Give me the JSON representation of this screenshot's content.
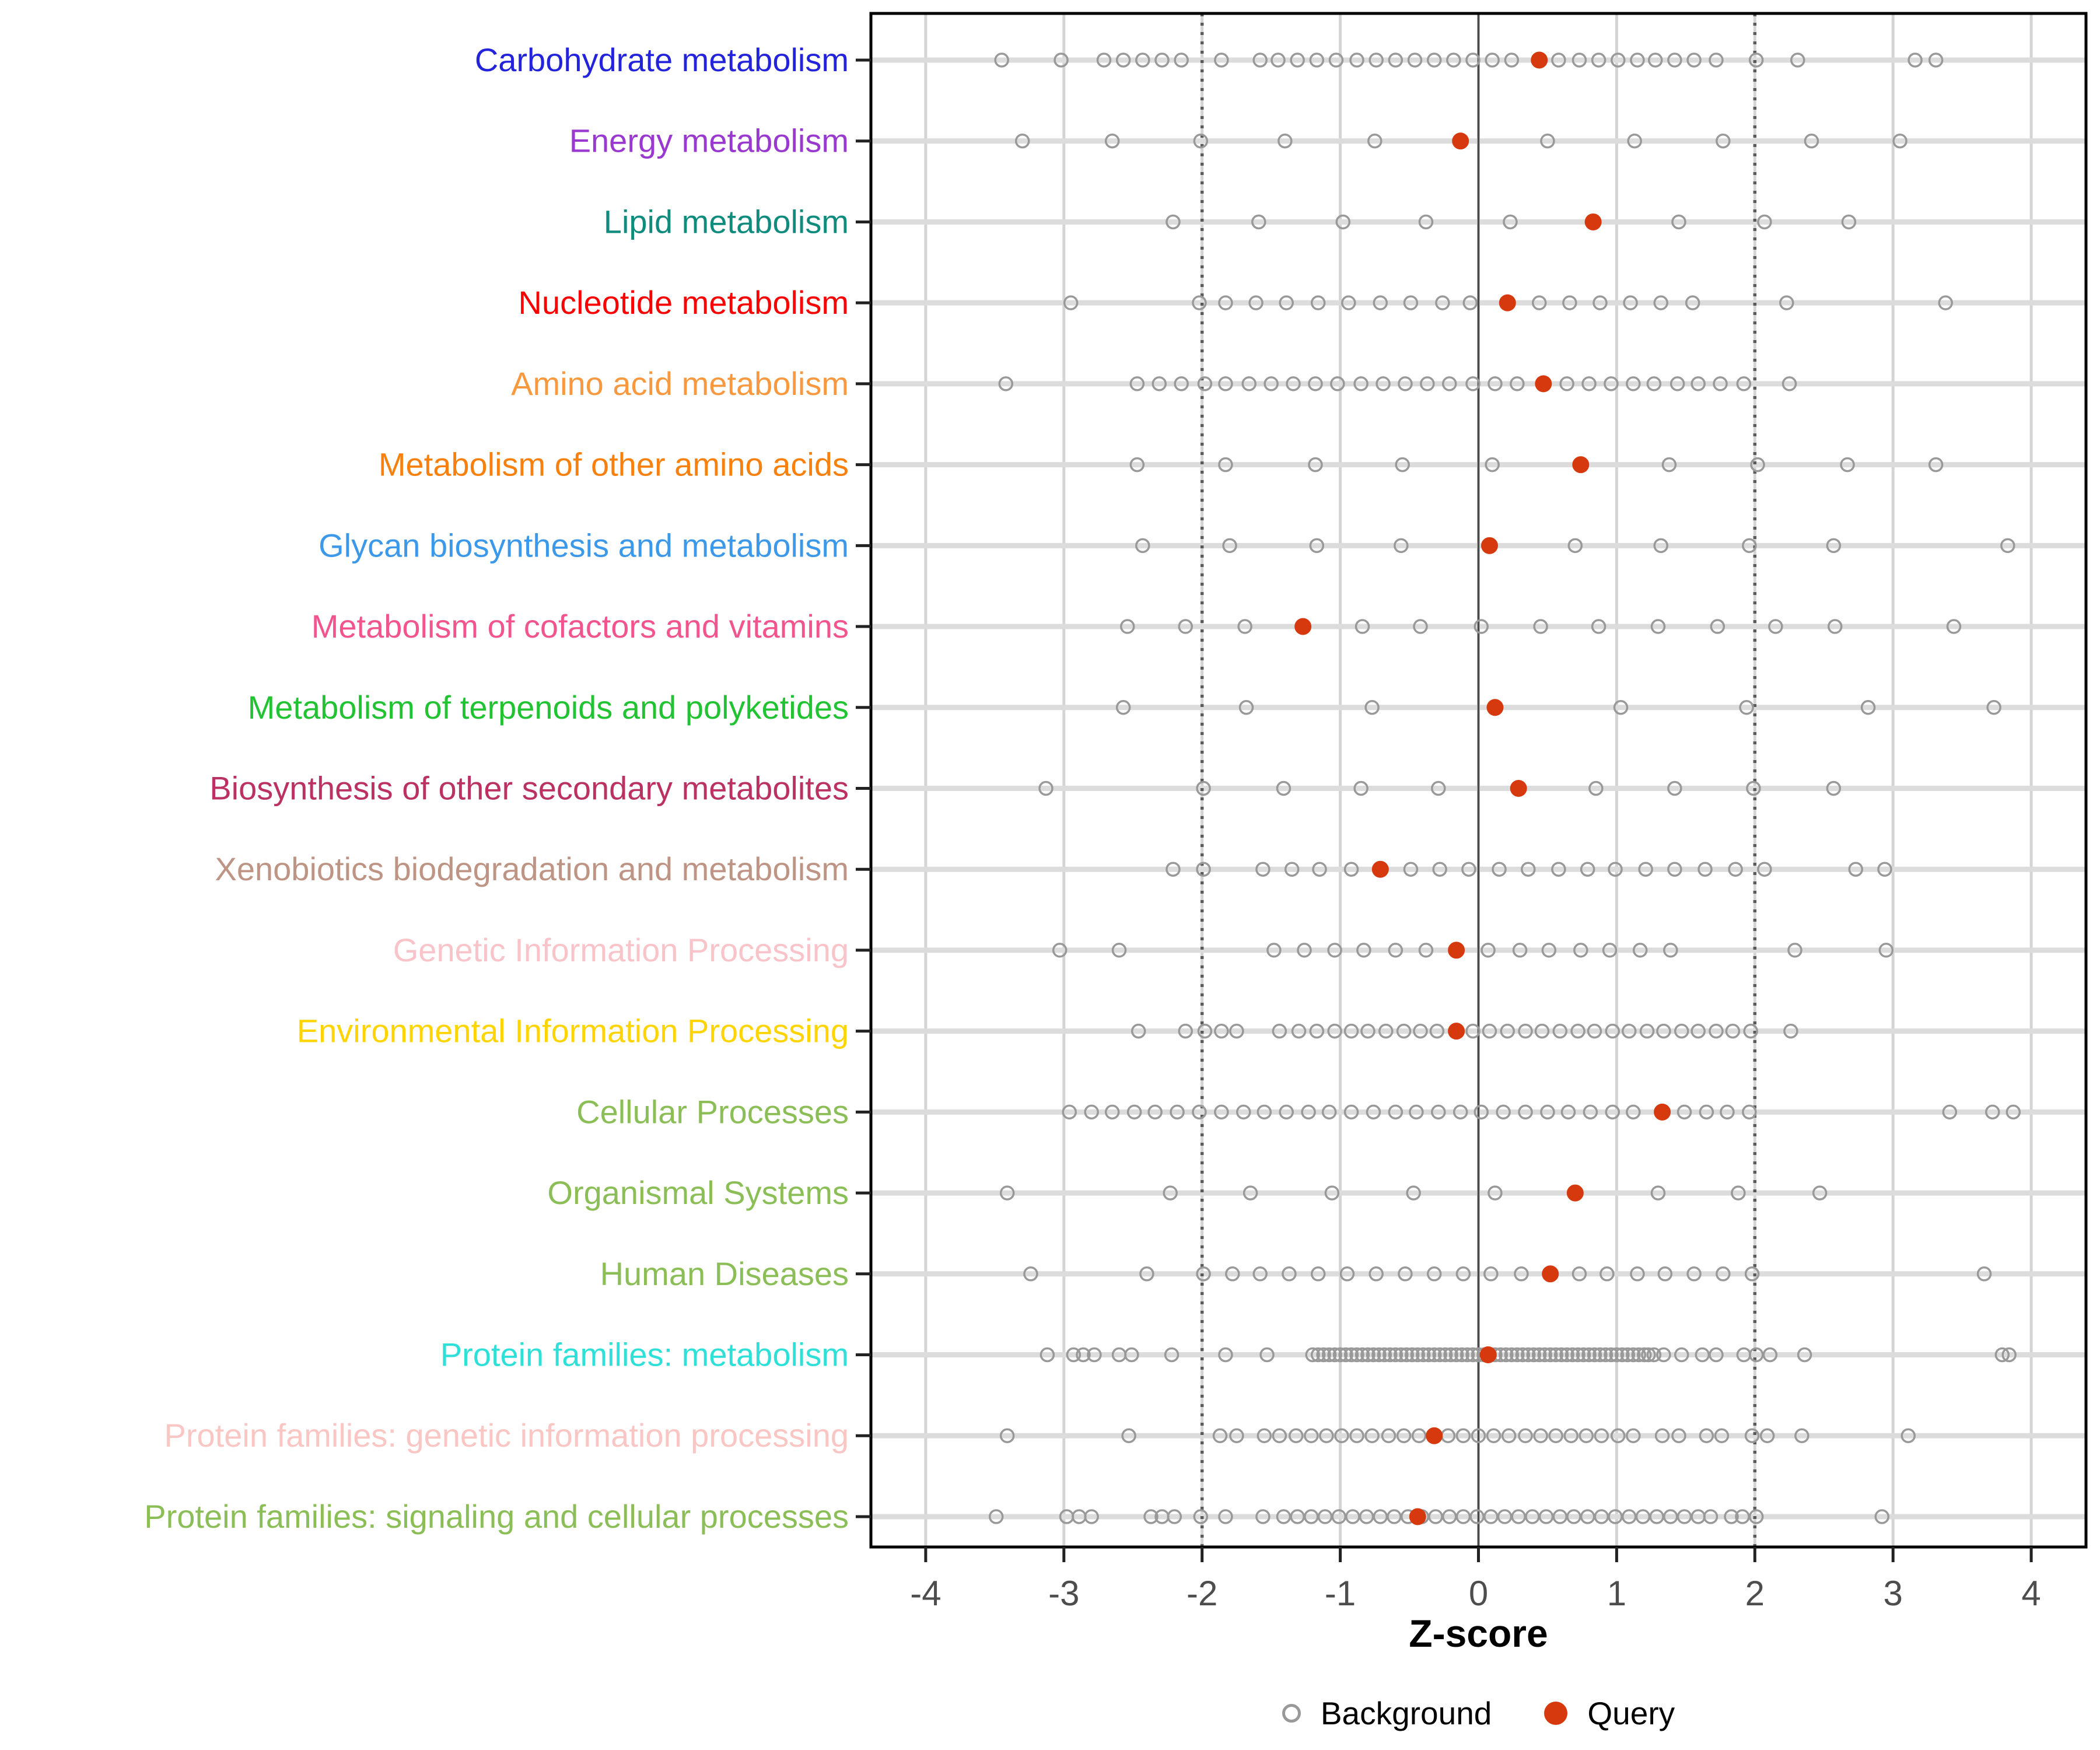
{
  "chart_data": {
    "type": "scatter",
    "title": "",
    "xlabel": "Z-score",
    "xlim": [
      -4.4,
      4.4
    ],
    "x_ticks": [
      -4,
      -3,
      -2,
      -1,
      0,
      1,
      2,
      3,
      4
    ],
    "grid": true,
    "reference_lines": {
      "solid": [
        0
      ],
      "dotted": [
        -2,
        2
      ]
    },
    "legend": {
      "background": "Background",
      "query": "Query",
      "position": "bottom"
    },
    "marker_colors": {
      "background_stroke": "#999999",
      "query_fill": "#D7390F"
    },
    "rows": [
      {
        "label": "Carbohydrate metabolism",
        "label_color": "#2323DC",
        "query": 0.44,
        "background": [
          -3.45,
          -3.02,
          -2.71,
          -2.57,
          -2.43,
          -2.29,
          -2.15,
          -1.86,
          -1.58,
          -1.45,
          -1.31,
          -1.17,
          -1.03,
          -0.88,
          -0.74,
          -0.6,
          -0.46,
          -0.32,
          -0.18,
          -0.04,
          0.1,
          0.24,
          0.58,
          0.73,
          0.87,
          1.01,
          1.15,
          1.28,
          1.42,
          1.56,
          1.72,
          2.01,
          2.31,
          3.16,
          3.31
        ]
      },
      {
        "label": "Energy metabolism",
        "label_color": "#9A39CF",
        "query": -0.13,
        "background": [
          -3.3,
          -2.65,
          -2.01,
          -1.4,
          -0.75,
          0.5,
          1.13,
          1.77,
          2.41,
          3.05
        ]
      },
      {
        "label": "Lipid metabolism",
        "label_color": "#108C7E",
        "query": 0.83,
        "background": [
          -2.21,
          -1.59,
          -0.98,
          -0.38,
          0.23,
          1.45,
          2.07,
          2.68
        ]
      },
      {
        "label": "Nucleotide metabolism",
        "label_color": "#FA0000",
        "query": 0.21,
        "background": [
          -2.95,
          -2.02,
          -1.83,
          -1.61,
          -1.39,
          -1.16,
          -0.94,
          -0.71,
          -0.49,
          -0.26,
          -0.06,
          0.44,
          0.66,
          0.88,
          1.1,
          1.32,
          1.55,
          2.23,
          3.38
        ]
      },
      {
        "label": "Amino acid metabolism",
        "label_color": "#F9993F",
        "query": 0.47,
        "background": [
          -3.42,
          -2.47,
          -2.31,
          -2.15,
          -1.98,
          -1.83,
          -1.66,
          -1.5,
          -1.34,
          -1.18,
          -1.02,
          -0.85,
          -0.69,
          -0.53,
          -0.37,
          -0.21,
          -0.04,
          0.12,
          0.28,
          0.64,
          0.8,
          0.96,
          1.12,
          1.27,
          1.44,
          1.59,
          1.75,
          1.92,
          2.25
        ]
      },
      {
        "label": "Metabolism of other amino acids",
        "label_color": "#F7800E",
        "query": 0.74,
        "background": [
          -2.47,
          -1.83,
          -1.18,
          -0.55,
          0.1,
          1.38,
          2.02,
          2.67,
          3.31
        ]
      },
      {
        "label": "Glycan biosynthesis and metabolism",
        "label_color": "#3C99EA",
        "query": 0.08,
        "background": [
          -2.43,
          -1.8,
          -1.17,
          -0.56,
          0.7,
          1.32,
          1.96,
          2.57,
          3.83
        ]
      },
      {
        "label": "Metabolism of cofactors and vitamins",
        "label_color": "#F2548E",
        "query": -1.27,
        "background": [
          -2.54,
          -2.12,
          -1.69,
          -0.84,
          -0.42,
          0.02,
          0.45,
          0.87,
          1.3,
          1.73,
          2.15,
          2.58,
          3.44
        ]
      },
      {
        "label": "Metabolism of terpenoids and polyketides",
        "label_color": "#21C332",
        "query": 0.12,
        "background": [
          -2.57,
          -1.68,
          -0.77,
          1.03,
          1.94,
          2.82,
          3.73
        ]
      },
      {
        "label": "Biosynthesis of other secondary metabolites",
        "label_color": "#BA3162",
        "query": 0.29,
        "background": [
          -3.13,
          -1.99,
          -1.41,
          -0.85,
          -0.29,
          0.85,
          1.42,
          1.99,
          2.57
        ]
      },
      {
        "label": "Xenobiotics biodegradation and metabolism",
        "label_color": "#BE9484",
        "query": -0.71,
        "background": [
          -2.21,
          -1.99,
          -1.56,
          -1.35,
          -1.15,
          -0.92,
          -0.49,
          -0.28,
          -0.07,
          0.15,
          0.36,
          0.58,
          0.79,
          0.99,
          1.21,
          1.42,
          1.64,
          1.86,
          2.07,
          2.73,
          2.94
        ]
      },
      {
        "label": "Genetic Information Processing",
        "label_color": "#F9C4C9",
        "query": -0.16,
        "background": [
          -3.03,
          -2.6,
          -1.48,
          -1.26,
          -1.04,
          -0.83,
          -0.6,
          -0.38,
          0.07,
          0.3,
          0.51,
          0.74,
          0.95,
          1.17,
          1.39,
          2.29,
          2.95
        ]
      },
      {
        "label": "Environmental Information Processing",
        "label_color": "#FFD400",
        "query": -0.16,
        "background": [
          -2.46,
          -2.12,
          -1.98,
          -1.86,
          -1.75,
          -1.44,
          -1.3,
          -1.17,
          -1.04,
          -0.92,
          -0.8,
          -0.67,
          -0.54,
          -0.42,
          -0.3,
          -0.04,
          0.08,
          0.21,
          0.34,
          0.46,
          0.59,
          0.72,
          0.84,
          0.97,
          1.09,
          1.22,
          1.34,
          1.47,
          1.59,
          1.72,
          1.84,
          1.97,
          2.26
        ]
      },
      {
        "label": "Cellular Processes",
        "label_color": "#8CBE57",
        "query": 1.33,
        "background": [
          -2.96,
          -2.8,
          -2.65,
          -2.49,
          -2.34,
          -2.18,
          -2.02,
          -1.86,
          -1.7,
          -1.55,
          -1.39,
          -1.23,
          -1.08,
          -0.92,
          -0.76,
          -0.6,
          -0.45,
          -0.29,
          -0.13,
          0.02,
          0.18,
          0.34,
          0.5,
          0.65,
          0.81,
          0.97,
          1.12,
          1.49,
          1.65,
          1.8,
          1.96,
          3.41,
          3.72,
          3.87
        ]
      },
      {
        "label": "Organismal Systems",
        "label_color": "#8CBE57",
        "query": 0.7,
        "background": [
          -3.41,
          -2.23,
          -1.65,
          -1.06,
          -0.47,
          0.12,
          1.3,
          1.88,
          2.47
        ]
      },
      {
        "label": "Human Diseases",
        "label_color": "#8CBE57",
        "query": 0.52,
        "background": [
          -3.24,
          -2.4,
          -1.99,
          -1.78,
          -1.58,
          -1.37,
          -1.16,
          -0.95,
          -0.74,
          -0.53,
          -0.32,
          -0.11,
          0.09,
          0.31,
          0.73,
          0.93,
          1.15,
          1.35,
          1.56,
          1.77,
          1.98,
          3.66
        ]
      },
      {
        "label": "Protein families: metabolism",
        "label_color": "#2EE0D8",
        "query": 0.07,
        "background": [
          -3.12,
          -2.93,
          -2.86,
          -2.78,
          -2.6,
          -2.51,
          -2.22,
          -1.83,
          -1.53,
          -1.2,
          -1.16,
          -1.12,
          -1.08,
          -1.04,
          -1.0,
          -0.96,
          -0.92,
          -0.88,
          -0.84,
          -0.8,
          -0.76,
          -0.72,
          -0.68,
          -0.64,
          -0.6,
          -0.56,
          -0.52,
          -0.48,
          -0.44,
          -0.4,
          -0.36,
          -0.32,
          -0.28,
          -0.24,
          -0.2,
          -0.16,
          -0.12,
          -0.08,
          -0.04,
          0.0,
          0.04,
          0.08,
          0.12,
          0.16,
          0.2,
          0.24,
          0.28,
          0.32,
          0.36,
          0.4,
          0.44,
          0.48,
          0.52,
          0.56,
          0.6,
          0.64,
          0.68,
          0.72,
          0.76,
          0.8,
          0.84,
          0.88,
          0.92,
          0.96,
          1.0,
          1.04,
          1.08,
          1.12,
          1.16,
          1.2,
          1.23,
          1.27,
          1.34,
          1.47,
          1.62,
          1.72,
          1.92,
          2.01,
          2.11,
          2.36,
          3.79,
          3.84
        ]
      },
      {
        "label": "Protein families: genetic information processing",
        "label_color": "#FAC6C3",
        "query": -0.32,
        "background": [
          -3.41,
          -2.53,
          -1.87,
          -1.75,
          -1.55,
          -1.44,
          -1.32,
          -1.21,
          -1.1,
          -0.99,
          -0.88,
          -0.77,
          -0.65,
          -0.54,
          -0.43,
          -0.22,
          -0.11,
          0.0,
          0.11,
          0.22,
          0.34,
          0.45,
          0.56,
          0.67,
          0.78,
          0.89,
          1.01,
          1.12,
          1.33,
          1.45,
          1.65,
          1.76,
          1.98,
          2.09,
          2.34,
          3.11
        ]
      },
      {
        "label": "Protein families: signaling and cellular processes",
        "label_color": "#8CBE57",
        "query": -0.44,
        "background": [
          -3.49,
          -2.98,
          -2.89,
          -2.8,
          -2.37,
          -2.29,
          -2.2,
          -2.01,
          -1.83,
          -1.56,
          -1.41,
          -1.31,
          -1.21,
          -1.11,
          -1.01,
          -0.91,
          -0.81,
          -0.71,
          -0.61,
          -0.51,
          -0.41,
          -0.31,
          -0.21,
          -0.11,
          -0.01,
          0.09,
          0.19,
          0.29,
          0.39,
          0.49,
          0.59,
          0.69,
          0.79,
          0.89,
          0.99,
          1.09,
          1.19,
          1.29,
          1.39,
          1.49,
          1.59,
          1.68,
          1.83,
          1.91,
          2.01,
          2.92
        ]
      }
    ]
  }
}
